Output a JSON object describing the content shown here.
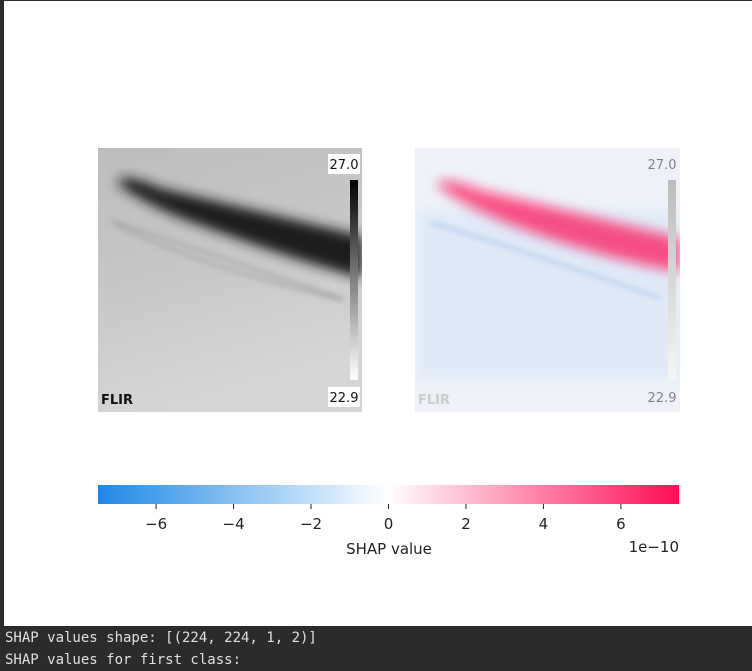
{
  "left_image": {
    "max_label": "27.0",
    "min_label": "22.9",
    "brand": "FLIR"
  },
  "colorbar": {
    "range": [
      -7.5,
      7.5
    ],
    "ticks": [
      {
        "value": -6,
        "label": "−6"
      },
      {
        "value": -4,
        "label": "−4"
      },
      {
        "value": -2,
        "label": "−2"
      },
      0,
      2,
      4,
      6
    ],
    "colors": [
      "#1e88e5",
      "#ffffff",
      "#ff0d57"
    ],
    "label": "SHAP value",
    "scale_label": "1e−10"
  },
  "console": {
    "lines": [
      "SHAP values shape: [(224, 224, 1, 2)]",
      "SHAP values for first class:"
    ]
  }
}
